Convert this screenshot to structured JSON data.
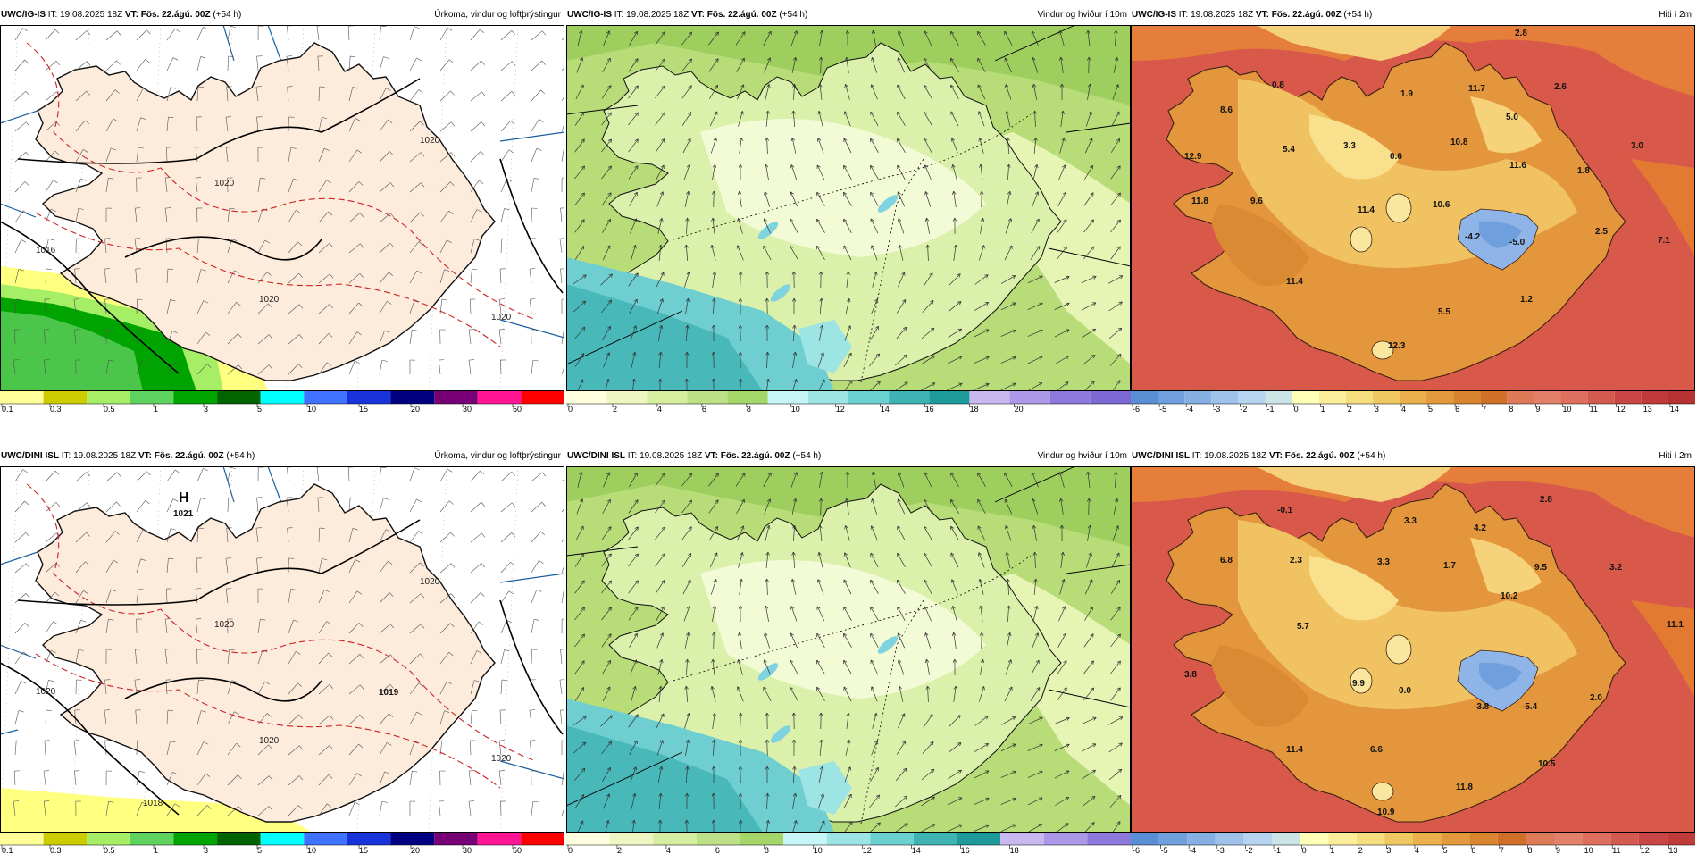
{
  "panels": [
    {
      "id": "p1",
      "row": 0,
      "col": 0,
      "model": "UWC/IG-IS",
      "it_label": "IT:",
      "it": "19.08.2025 18Z",
      "vt_label": "VT:",
      "vt": "Fös. 22.ágú. 00Z",
      "lead": "(+54 h)",
      "title": "Úrkoma, vindur og loftþrýstingur",
      "scale": "precip",
      "isobars": [
        "1020",
        "1020",
        "1020",
        "1016",
        "1020"
      ],
      "hmarks": [],
      "values": []
    },
    {
      "id": "p2",
      "row": 0,
      "col": 1,
      "model": "UWC/IG-IS",
      "it_label": "IT:",
      "it": "19.08.2025 18Z",
      "vt_label": "VT:",
      "vt": "Fös. 22.ágú. 00Z",
      "lead": "(+54 h)",
      "title": "Vindur og hviður í 10m",
      "scale": "wind_a",
      "isobars": [],
      "hmarks": [],
      "values": []
    },
    {
      "id": "p3",
      "row": 0,
      "col": 2,
      "model": "UWC/IG-IS",
      "it_label": "IT:",
      "it": "19.08.2025 18Z",
      "vt_label": "VT:",
      "vt": "Fös. 22.ágú. 00Z",
      "lead": "(+54 h)",
      "title": "Hiti í 2m",
      "scale": "temp_a",
      "isobars": [],
      "hmarks": [],
      "values": [
        "2.8",
        "0.8",
        "1.9",
        "11.7",
        "2.6",
        "8.6",
        "5.0",
        "3.3",
        "10.8",
        "3.0",
        "12.9",
        "5.4",
        "0.6",
        "11.6",
        "1.8",
        "11.8",
        "9.6",
        "10.6",
        "11.4",
        "-4.2",
        "-5.0",
        "2.5",
        "7.1",
        "11.4",
        "1.2",
        "5.5",
        "12.3"
      ]
    },
    {
      "id": "p4",
      "row": 1,
      "col": 0,
      "model": "UWC/DINI ISL",
      "it_label": "IT:",
      "it": "19.08.2025 18Z",
      "vt_label": "VT:",
      "vt": "Fös. 22.ágú. 00Z",
      "lead": "(+54 h)",
      "title": "Úrkoma, vindur og loftþrýstingur",
      "scale": "precip",
      "isobars": [
        "1020",
        "1020",
        "1020",
        "1020",
        "1020",
        "1018"
      ],
      "hmarks": [
        {
          "letter": "H",
          "value": "1021"
        },
        {
          "letter": "",
          "value": "1019"
        }
      ],
      "values": []
    },
    {
      "id": "p5",
      "row": 1,
      "col": 1,
      "model": "UWC/DINI ISL",
      "it_label": "IT:",
      "it": "19.08.2025 18Z",
      "vt_label": "VT:",
      "vt": "Fös. 22.ágú. 00Z",
      "lead": "(+54 h)",
      "title": "Vindur og hviður í 10m",
      "scale": "wind_b",
      "isobars": [],
      "hmarks": [],
      "values": []
    },
    {
      "id": "p6",
      "row": 1,
      "col": 2,
      "model": "UWC/DINI ISL",
      "it_label": "IT:",
      "it": "19.08.2025 18Z",
      "vt_label": "VT:",
      "vt": "Fös. 22.ágú. 00Z",
      "lead": "(+54 h)",
      "title": "Hiti í 2m",
      "scale": "temp_b",
      "isobars": [],
      "hmarks": [],
      "values": [
        "2.8",
        "-0.1",
        "3.3",
        "4.2",
        "6.8",
        "2.3",
        "3.3",
        "1.7",
        "9.5",
        "3.2",
        "10.2",
        "5.7",
        "11.1",
        "3.8",
        "9.9",
        "0.0",
        "-3.8",
        "-5.4",
        "2.0",
        "11.4",
        "6.6",
        "10.5",
        "11.8",
        "10.9"
      ]
    }
  ],
  "scales": {
    "precip": {
      "colors": [
        "#ffff99",
        "#cccc00",
        "#a6ee66",
        "#5fd35f",
        "#00a400",
        "#006400",
        "#00ffff",
        "#3f73ff",
        "#1833d9",
        "#000080",
        "#770077",
        "#ff1493",
        "#ff0000"
      ],
      "labels": [
        "0.1",
        "0.3",
        "0.5",
        "1",
        "3",
        "5",
        "10",
        "15",
        "20",
        "30",
        "50"
      ],
      "label_start": 0
    },
    "wind_a": {
      "colors": [
        "#ffffe0",
        "#eef7c2",
        "#d6eea0",
        "#bde186",
        "#a5d66a",
        "#c6f6f6",
        "#9de4e4",
        "#6ad0d0",
        "#3fb3b3",
        "#1e9a9a",
        "#c9b8f0",
        "#ab98e6",
        "#8d78dc",
        "#7e68d4"
      ],
      "labels": [
        "0",
        "2",
        "4",
        "6",
        "8",
        "10",
        "12",
        "14",
        "16",
        "18",
        "20"
      ],
      "label_start": 0
    },
    "wind_b": {
      "colors": [
        "#ffffe0",
        "#eef7c2",
        "#d6eea0",
        "#bde186",
        "#a5d66a",
        "#c6f6f6",
        "#9de4e4",
        "#6ad0d0",
        "#3fb3b3",
        "#1e9a9a",
        "#c9b8f0",
        "#ab98e6",
        "#8d78dc"
      ],
      "labels": [
        "0",
        "2",
        "4",
        "6",
        "8",
        "10",
        "12",
        "14",
        "16",
        "18"
      ],
      "label_start": 0
    },
    "temp_a": {
      "colors": [
        "#5a8fd6",
        "#6f9fdd",
        "#86b0e4",
        "#9ec2ea",
        "#b6d3f0",
        "#cde4e6",
        "#ffffb8",
        "#fbee9a",
        "#f6dd7d",
        "#f0c862",
        "#ebb04b",
        "#e29a3c",
        "#d9842f",
        "#d07028",
        "#dd7a58",
        "#e3806a",
        "#de6e5e",
        "#d45a50",
        "#c84545",
        "#c03a3a",
        "#b53232"
      ],
      "labels": [
        "-6",
        "-5",
        "-4",
        "-3",
        "-2",
        "-1",
        "0",
        "1",
        "2",
        "3",
        "4",
        "5",
        "6",
        "7",
        "8",
        "9",
        "10",
        "11",
        "12",
        "13",
        "14"
      ],
      "label_start": 0
    },
    "temp_b": {
      "colors": [
        "#5a8fd6",
        "#6f9fdd",
        "#86b0e4",
        "#9ec2ea",
        "#b6d3f0",
        "#cde4e6",
        "#ffffb8",
        "#fbee9a",
        "#f6dd7d",
        "#f0c862",
        "#ebb04b",
        "#e29a3c",
        "#d9842f",
        "#d07028",
        "#dd7a58",
        "#e3806a",
        "#de6e5e",
        "#d45a50",
        "#c84545",
        "#c03a3a"
      ],
      "labels": [
        "-6",
        "-5",
        "-4",
        "-3",
        "-2",
        "-1",
        "0",
        "1",
        "2",
        "3",
        "4",
        "5",
        "6",
        "7",
        "8",
        "9",
        "10",
        "11",
        "12",
        "13"
      ],
      "label_start": 0
    }
  },
  "colors": {
    "land_pressure": "#fdebdc",
    "sea_pressure": "#ffffff",
    "isobar": "#000000",
    "isotherm_dash": "#cc2222",
    "graticule": "#1a5fa0",
    "sea_temp": "#d8584a",
    "land_temp": "#e4963d",
    "ice_temp": "#8fb4e8",
    "wind_sea": "#6fcfd0",
    "wind_land": "#cde59a"
  }
}
